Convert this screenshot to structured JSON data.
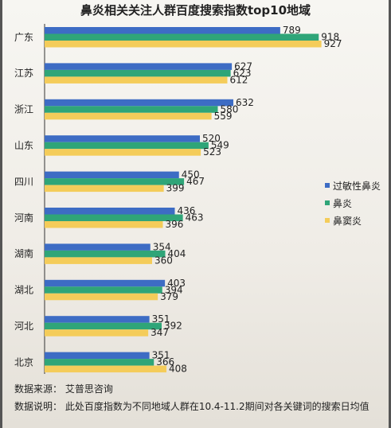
{
  "chart_data": {
    "type": "bar",
    "orientation": "horizontal",
    "title": "鼻炎相关关注人群百度搜索指数top10地域",
    "categories": [
      "广东",
      "江苏",
      "浙江",
      "山东",
      "四川",
      "河南",
      "湖南",
      "湖北",
      "河北",
      "北京"
    ],
    "series": [
      {
        "name": "过敏性鼻炎",
        "color": "#3d6cc4",
        "values": [
          789,
          627,
          632,
          520,
          450,
          436,
          354,
          403,
          351,
          351
        ]
      },
      {
        "name": "鼻炎",
        "color": "#2fa578",
        "values": [
          918,
          623,
          580,
          549,
          467,
          463,
          404,
          394,
          392,
          366
        ]
      },
      {
        "name": "鼻窦炎",
        "color": "#f4cc5a",
        "values": [
          927,
          612,
          559,
          523,
          399,
          396,
          360,
          379,
          347,
          408
        ]
      }
    ],
    "xlim": [
      0,
      1000
    ],
    "grid": false,
    "legend_position": "right"
  },
  "footer": {
    "source": "数据来源：  艾普思咨询",
    "note": "数据说明：  此处百度指数为不同地域人群在10.4-11.2期间对各关键词的搜索日均值"
  }
}
